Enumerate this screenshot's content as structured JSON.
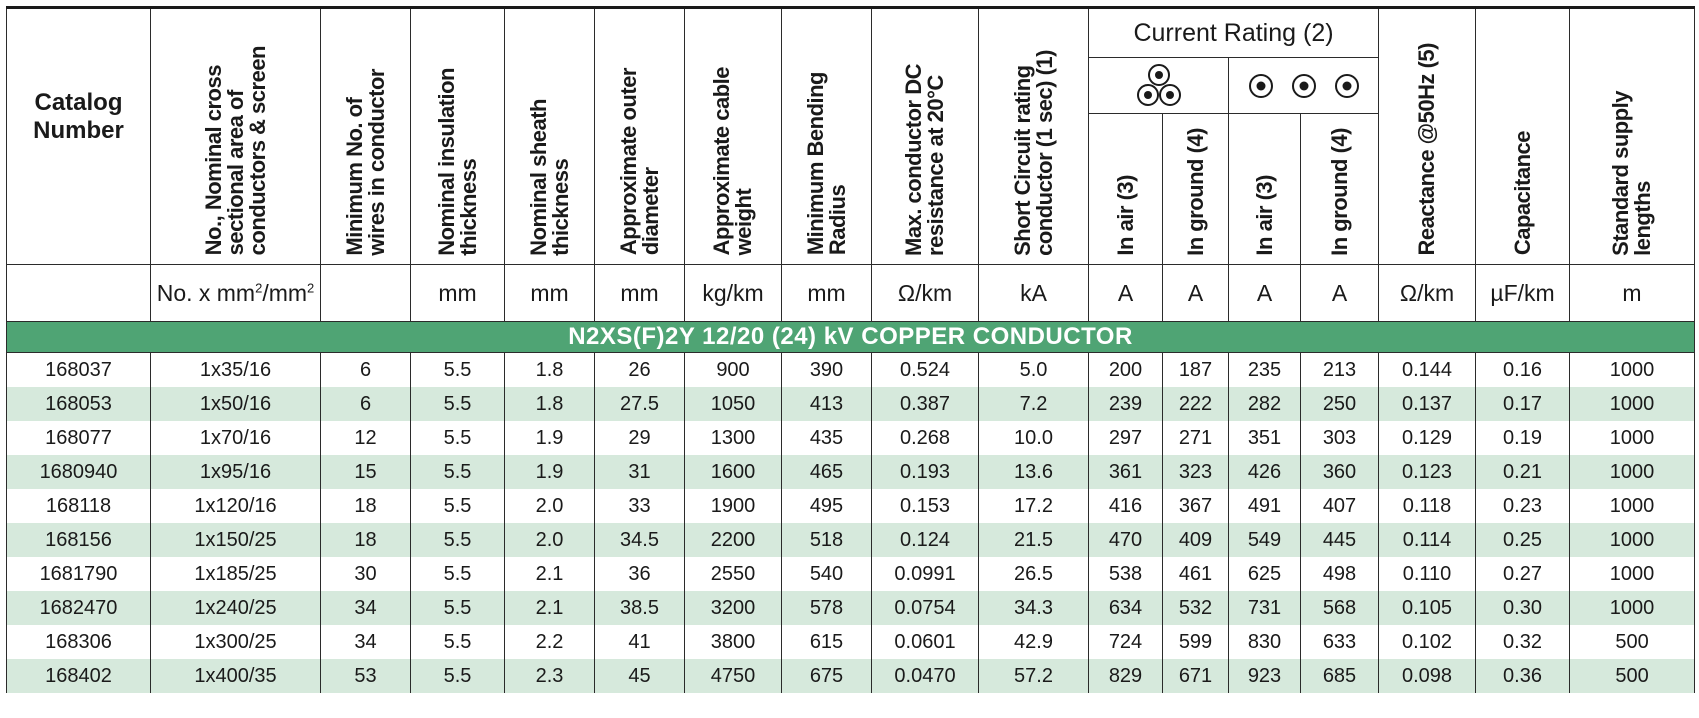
{
  "headers": {
    "catalog_number": "Catalog\nNumber",
    "cross_section": "No., Nominal cross\nsectional area of\nconductors & screen",
    "min_wires": "Minimum No. of\nwires in conductor",
    "insulation": "Nominal  insulation\nthickness",
    "sheath": "Nominal sheath\nthickness",
    "outer_diameter": "Approximate outer\ndiameter",
    "cable_weight": "Approximate cable\nweight",
    "bending_radius": "Minimum Bending\nRadius",
    "dc_resistance": "Max. conductor DC\nresistance at 20°C",
    "short_circuit": "Short Circuit rating\nconductor (1 sec) (1)",
    "current_rating": "Current Rating (2)",
    "in_air": "In air (3)",
    "in_ground": "In ground (4)",
    "reactance": "Reactance @50Hz (5)",
    "capacitance": "Capacitance",
    "supply_lengths": "Standard supply\nlengths"
  },
  "icons": {
    "trefoil": "trefoil-formation-icon",
    "flat": "flat-formation-icon"
  },
  "units": {
    "catalog": "",
    "cross_section_prefix": "No. x mm",
    "cross_section_mid": "/mm",
    "cross_section_sup": "2",
    "min_wires": "",
    "insulation": "mm",
    "sheath": "mm",
    "outer_diameter": "mm",
    "cable_weight": "kg/km",
    "bending_radius": "mm",
    "dc_resistance": "Ω/km",
    "short_circuit": "kA",
    "trefoil_air": "A",
    "trefoil_ground": "A",
    "flat_air": "A",
    "flat_ground": "A",
    "reactance": "Ω/km",
    "capacitance": "µF/km",
    "supply_lengths": "m"
  },
  "section_title": "N2XS(F)2Y 12/20 (24) kV COPPER CONDUCTOR",
  "colors": {
    "section_bar": "#4fa474",
    "row_alt": "#d6e9dc"
  },
  "rows": [
    [
      "168037",
      "1x35/16",
      "6",
      "5.5",
      "1.8",
      "26",
      "900",
      "390",
      "0.524",
      "5.0",
      "200",
      "187",
      "235",
      "213",
      "0.144",
      "0.16",
      "1000"
    ],
    [
      "168053",
      "1x50/16",
      "6",
      "5.5",
      "1.8",
      "27.5",
      "1050",
      "413",
      "0.387",
      "7.2",
      "239",
      "222",
      "282",
      "250",
      "0.137",
      "0.17",
      "1000"
    ],
    [
      "168077",
      "1x70/16",
      "12",
      "5.5",
      "1.9",
      "29",
      "1300",
      "435",
      "0.268",
      "10.0",
      "297",
      "271",
      "351",
      "303",
      "0.129",
      "0.19",
      "1000"
    ],
    [
      "1680940",
      "1x95/16",
      "15",
      "5.5",
      "1.9",
      "31",
      "1600",
      "465",
      "0.193",
      "13.6",
      "361",
      "323",
      "426",
      "360",
      "0.123",
      "0.21",
      "1000"
    ],
    [
      "168118",
      "1x120/16",
      "18",
      "5.5",
      "2.0",
      "33",
      "1900",
      "495",
      "0.153",
      "17.2",
      "416",
      "367",
      "491",
      "407",
      "0.118",
      "0.23",
      "1000"
    ],
    [
      "168156",
      "1x150/25",
      "18",
      "5.5",
      "2.0",
      "34.5",
      "2200",
      "518",
      "0.124",
      "21.5",
      "470",
      "409",
      "549",
      "445",
      "0.114",
      "0.25",
      "1000"
    ],
    [
      "1681790",
      "1x185/25",
      "30",
      "5.5",
      "2.1",
      "36",
      "2550",
      "540",
      "0.0991",
      "26.5",
      "538",
      "461",
      "625",
      "498",
      "0.110",
      "0.27",
      "1000"
    ],
    [
      "1682470",
      "1x240/25",
      "34",
      "5.5",
      "2.1",
      "38.5",
      "3200",
      "578",
      "0.0754",
      "34.3",
      "634",
      "532",
      "731",
      "568",
      "0.105",
      "0.30",
      "1000"
    ],
    [
      "168306",
      "1x300/25",
      "34",
      "5.5",
      "2.2",
      "41",
      "3800",
      "615",
      "0.0601",
      "42.9",
      "724",
      "599",
      "830",
      "633",
      "0.102",
      "0.32",
      "500"
    ],
    [
      "168402",
      "1x400/35",
      "53",
      "5.5",
      "2.3",
      "45",
      "4750",
      "675",
      "0.0470",
      "57.2",
      "829",
      "671",
      "923",
      "685",
      "0.098",
      "0.36",
      "500"
    ]
  ]
}
